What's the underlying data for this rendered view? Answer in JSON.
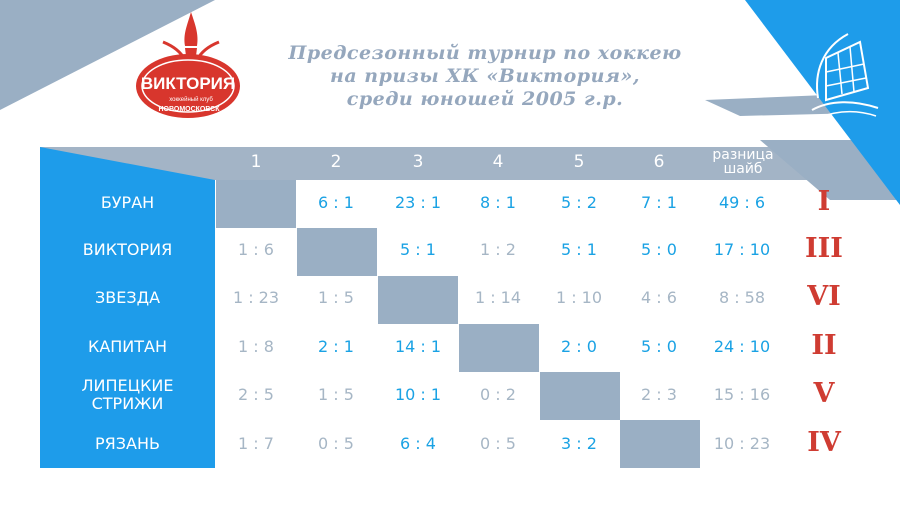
{
  "title_lines": [
    "Предсезонный турнир по хоккею",
    "на призы ХК «Виктория»,",
    "среди юношей 2005 г.р."
  ],
  "logo": {
    "name": "ВИКТОРИЯ",
    "sub": "хоккейный клуб",
    "city": "НОВОМОСКОВСК"
  },
  "columns": [
    "1",
    "2",
    "3",
    "4",
    "5",
    "6"
  ],
  "diff_header": [
    "разница",
    "шайб"
  ],
  "colors": {
    "win": "#1aa2e4",
    "lose": "#a6b6c5",
    "place": "#cf3c32",
    "panel": "#1e9cea",
    "diag": "#9aafc4"
  },
  "rows": [
    {
      "team": [
        "БУРАН"
      ],
      "scores": [
        null,
        "6 : 1",
        "23 : 1",
        "8 : 1",
        "5 : 2",
        "7 : 1"
      ],
      "result": [
        "",
        "win",
        "win",
        "win",
        "win",
        "win"
      ],
      "diff": "49 : 6",
      "diff_result": "win",
      "place": "I"
    },
    {
      "team": [
        "ВИКТОРИЯ"
      ],
      "scores": [
        "1 : 6",
        null,
        "5 : 1",
        "1 : 2",
        "5 : 1",
        "5 : 0"
      ],
      "result": [
        "lose",
        "",
        "win",
        "lose",
        "win",
        "win"
      ],
      "diff": "17 : 10",
      "diff_result": "win",
      "place": "III"
    },
    {
      "team": [
        "ЗВЕЗДА"
      ],
      "scores": [
        "1 : 23",
        "1 : 5",
        null,
        "1 : 14",
        "1 : 10",
        "4 : 6"
      ],
      "result": [
        "lose",
        "lose",
        "",
        "lose",
        "lose",
        "lose"
      ],
      "diff": "8 : 58",
      "diff_result": "lose",
      "place": "VI"
    },
    {
      "team": [
        "КАПИТАН"
      ],
      "scores": [
        "1 : 8",
        "2 : 1",
        "14 : 1",
        null,
        "2 : 0",
        "5 : 0"
      ],
      "result": [
        "lose",
        "win",
        "win",
        "",
        "win",
        "win"
      ],
      "diff": "24 : 10",
      "diff_result": "win",
      "place": "II"
    },
    {
      "team": [
        "ЛИПЕЦКИЕ",
        "СТРИЖИ"
      ],
      "scores": [
        "2 : 5",
        "1 : 5",
        "10 : 1",
        "0 : 2",
        null,
        "2 : 3"
      ],
      "result": [
        "lose",
        "lose",
        "win",
        "lose",
        "",
        "lose"
      ],
      "diff": "15 : 16",
      "diff_result": "lose",
      "place": "V"
    },
    {
      "team": [
        "РЯЗАНЬ"
      ],
      "scores": [
        "1 : 7",
        "0 : 5",
        "6 : 4",
        "0 : 5",
        "3 : 2",
        null
      ],
      "result": [
        "lose",
        "lose",
        "win",
        "lose",
        "win",
        ""
      ],
      "diff": "10 : 23",
      "diff_result": "lose",
      "place": "IV"
    }
  ]
}
